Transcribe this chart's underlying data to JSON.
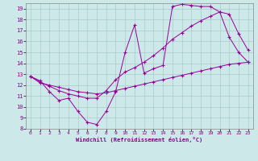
{
  "xlabel": "Windchill (Refroidissement éolien,°C)",
  "xlim": [
    -0.5,
    23.5
  ],
  "ylim": [
    8,
    19.5
  ],
  "xticks": [
    0,
    1,
    2,
    3,
    4,
    5,
    6,
    7,
    8,
    9,
    10,
    11,
    12,
    13,
    14,
    15,
    16,
    17,
    18,
    19,
    20,
    21,
    22,
    23
  ],
  "yticks": [
    8,
    9,
    10,
    11,
    12,
    13,
    14,
    15,
    16,
    17,
    18,
    19
  ],
  "background_color": "#cce8e8",
  "grid_color": "#aacccc",
  "line_color": "#990099",
  "line1_x": [
    0,
    1,
    2,
    3,
    4,
    5,
    6,
    7,
    8,
    9,
    10,
    11,
    12,
    13,
    14,
    15,
    16,
    17,
    18,
    19,
    20,
    21,
    22,
    23
  ],
  "line1_y": [
    12.8,
    12.4,
    11.4,
    10.6,
    10.8,
    9.6,
    8.6,
    8.4,
    9.6,
    11.4,
    15.0,
    17.5,
    13.1,
    13.5,
    13.8,
    19.2,
    19.4,
    19.3,
    19.2,
    19.2,
    18.7,
    16.4,
    15.0,
    14.1
  ],
  "line2_x": [
    0,
    1,
    2,
    3,
    4,
    5,
    6,
    7,
    8,
    9,
    10,
    11,
    12,
    13,
    14,
    15,
    16,
    17,
    18,
    19,
    20,
    21,
    22,
    23
  ],
  "line2_y": [
    12.8,
    12.3,
    11.9,
    11.5,
    11.2,
    11.0,
    10.8,
    10.8,
    11.5,
    12.5,
    13.2,
    13.6,
    14.1,
    14.7,
    15.4,
    16.2,
    16.8,
    17.4,
    17.9,
    18.3,
    18.7,
    18.5,
    16.7,
    15.2
  ],
  "line3_x": [
    0,
    1,
    2,
    3,
    4,
    5,
    6,
    7,
    8,
    9,
    10,
    11,
    12,
    13,
    14,
    15,
    16,
    17,
    18,
    19,
    20,
    21,
    22,
    23
  ],
  "line3_y": [
    12.8,
    12.2,
    12.0,
    11.8,
    11.6,
    11.4,
    11.3,
    11.2,
    11.3,
    11.5,
    11.7,
    11.9,
    12.1,
    12.3,
    12.5,
    12.7,
    12.9,
    13.1,
    13.3,
    13.5,
    13.7,
    13.9,
    14.0,
    14.1
  ]
}
